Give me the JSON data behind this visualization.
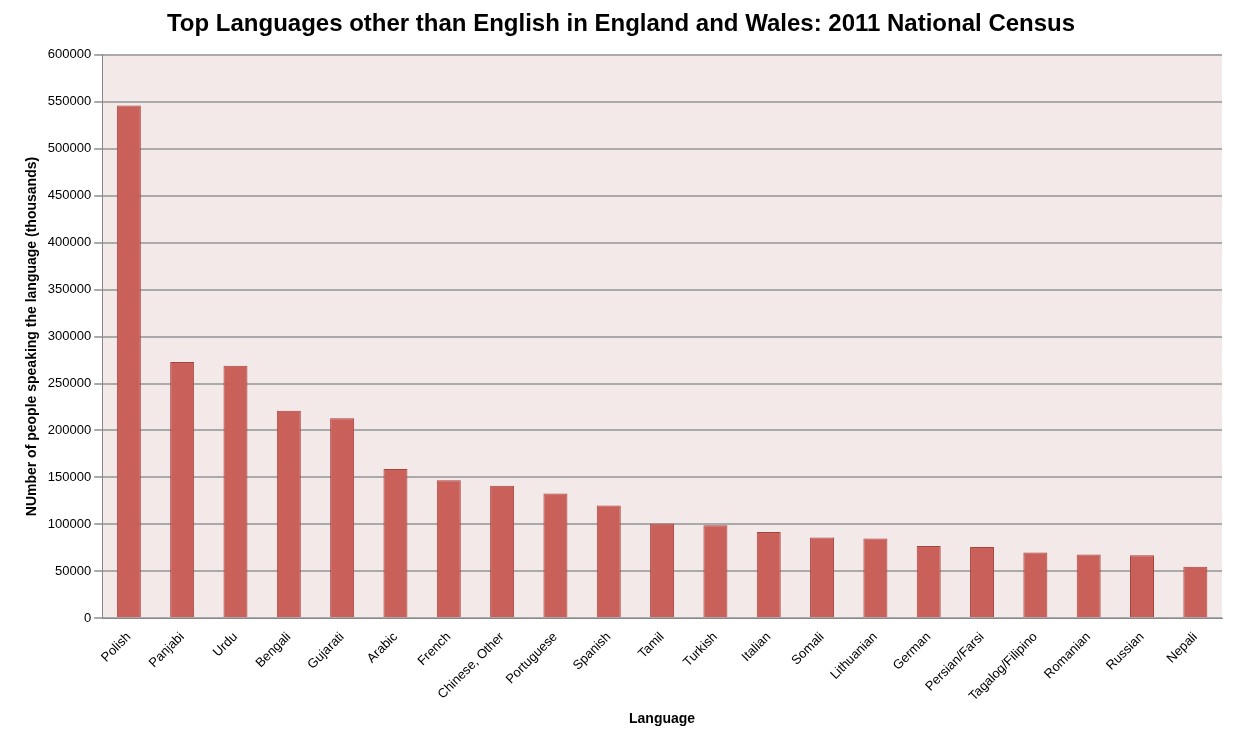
{
  "chart_data": {
    "type": "bar",
    "title": "Top Languages other than English in England and Wales: 2011 National Census",
    "xlabel": "Language",
    "ylabel": "NUmber of people speaking the language (thousands)",
    "categories": [
      "Polish",
      "Panjabi",
      "Urdu",
      "Bengali",
      "Gujarati",
      "Arabic",
      "French",
      "Chinese, Other",
      "Portuguese",
      "Spanish",
      "Tamil",
      "Turkish",
      "Italian",
      "Somali",
      "Lithuanian",
      "German",
      "Persian/Farsi",
      "Tagalog/Filipino",
      "Romanian",
      "Russian",
      "Nepali"
    ],
    "values": [
      546000,
      273000,
      269000,
      221000,
      213000,
      159000,
      147000,
      141000,
      133000,
      120000,
      101000,
      99000,
      92000,
      86000,
      85000,
      77000,
      76000,
      70000,
      68000,
      67000,
      55000
    ],
    "color": "#c9605a",
    "ylim": [
      0,
      600000
    ],
    "yticks": [
      0,
      50000,
      100000,
      150000,
      200000,
      250000,
      300000,
      350000,
      400000,
      450000,
      500000,
      550000,
      600000
    ],
    "grid": "y",
    "legend": false
  }
}
